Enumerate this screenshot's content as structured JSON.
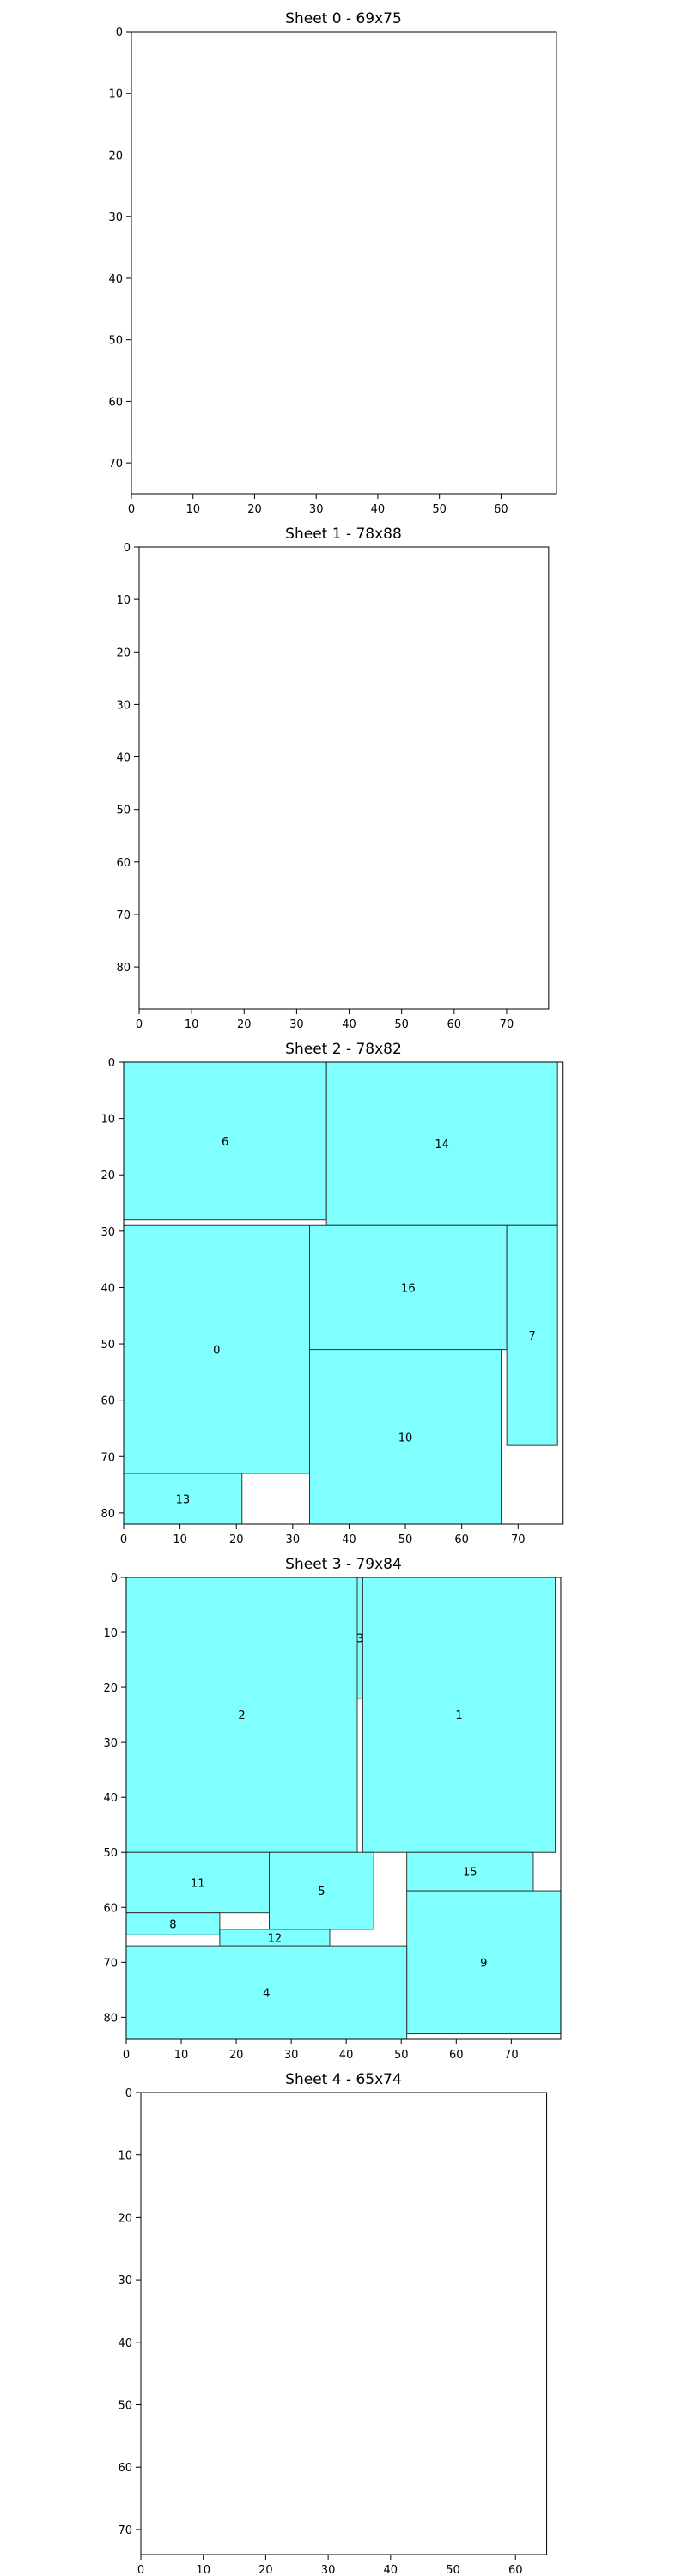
{
  "chart_data": [
    {
      "type": "rectangle-packing",
      "title": "Sheet 0 - 69x75",
      "width": 69,
      "height": 75,
      "xticks": [
        0,
        10,
        20,
        30,
        40,
        50,
        60
      ],
      "yticks": [
        0,
        10,
        20,
        30,
        40,
        50,
        60,
        70
      ],
      "pieces": []
    },
    {
      "type": "rectangle-packing",
      "title": "Sheet 1 - 78x88",
      "width": 78,
      "height": 88,
      "xticks": [
        0,
        10,
        20,
        30,
        40,
        50,
        60,
        70
      ],
      "yticks": [
        0,
        10,
        20,
        30,
        40,
        50,
        60,
        70,
        80
      ],
      "pieces": []
    },
    {
      "type": "rectangle-packing",
      "title": "Sheet 2 - 78x82",
      "width": 78,
      "height": 82,
      "xticks": [
        0,
        10,
        20,
        30,
        40,
        50,
        60,
        70
      ],
      "yticks": [
        0,
        10,
        20,
        30,
        40,
        50,
        60,
        70,
        80
      ],
      "pieces": [
        {
          "label": "6",
          "x": 0,
          "y": 0,
          "w": 36,
          "h": 28
        },
        {
          "label": "14",
          "x": 36,
          "y": 0,
          "w": 41,
          "h": 29
        },
        {
          "label": "0",
          "x": 0,
          "y": 29,
          "w": 33,
          "h": 44
        },
        {
          "label": "16",
          "x": 33,
          "y": 29,
          "w": 35,
          "h": 22
        },
        {
          "label": "7",
          "x": 68,
          "y": 29,
          "w": 9,
          "h": 39
        },
        {
          "label": "10",
          "x": 33,
          "y": 51,
          "w": 34,
          "h": 31
        },
        {
          "label": "13",
          "x": 0,
          "y": 73,
          "w": 21,
          "h": 9
        }
      ]
    },
    {
      "type": "rectangle-packing",
      "title": "Sheet 3 - 79x84",
      "width": 79,
      "height": 84,
      "xticks": [
        0,
        10,
        20,
        30,
        40,
        50,
        60,
        70
      ],
      "yticks": [
        0,
        10,
        20,
        30,
        40,
        50,
        60,
        70,
        80
      ],
      "pieces": [
        {
          "label": "2",
          "x": 0,
          "y": 0,
          "w": 42,
          "h": 50
        },
        {
          "label": "3",
          "x": 42,
          "y": 0,
          "w": 1,
          "h": 22
        },
        {
          "label": "1",
          "x": 43,
          "y": 0,
          "w": 35,
          "h": 50
        },
        {
          "label": "11",
          "x": 0,
          "y": 50,
          "w": 26,
          "h": 11
        },
        {
          "label": "5",
          "x": 26,
          "y": 50,
          "w": 19,
          "h": 14
        },
        {
          "label": "15",
          "x": 51,
          "y": 50,
          "w": 23,
          "h": 7
        },
        {
          "label": "8",
          "x": 0,
          "y": 61,
          "w": 17,
          "h": 4
        },
        {
          "label": "12",
          "x": 17,
          "y": 64,
          "w": 20,
          "h": 3
        },
        {
          "label": "9",
          "x": 51,
          "y": 57,
          "w": 28,
          "h": 26
        },
        {
          "label": "4",
          "x": 0,
          "y": 67,
          "w": 51,
          "h": 17
        }
      ]
    },
    {
      "type": "rectangle-packing",
      "title": "Sheet 4 - 65x74",
      "width": 65,
      "height": 74,
      "xticks": [
        0,
        10,
        20,
        30,
        40,
        50,
        60
      ],
      "yticks": [
        0,
        10,
        20,
        30,
        40,
        50,
        60,
        70
      ],
      "pieces": []
    }
  ],
  "colors": {
    "piece_fill": "#80ffff",
    "piece_edge": "#333333",
    "axes": "#000000",
    "background": "#ffffff"
  }
}
